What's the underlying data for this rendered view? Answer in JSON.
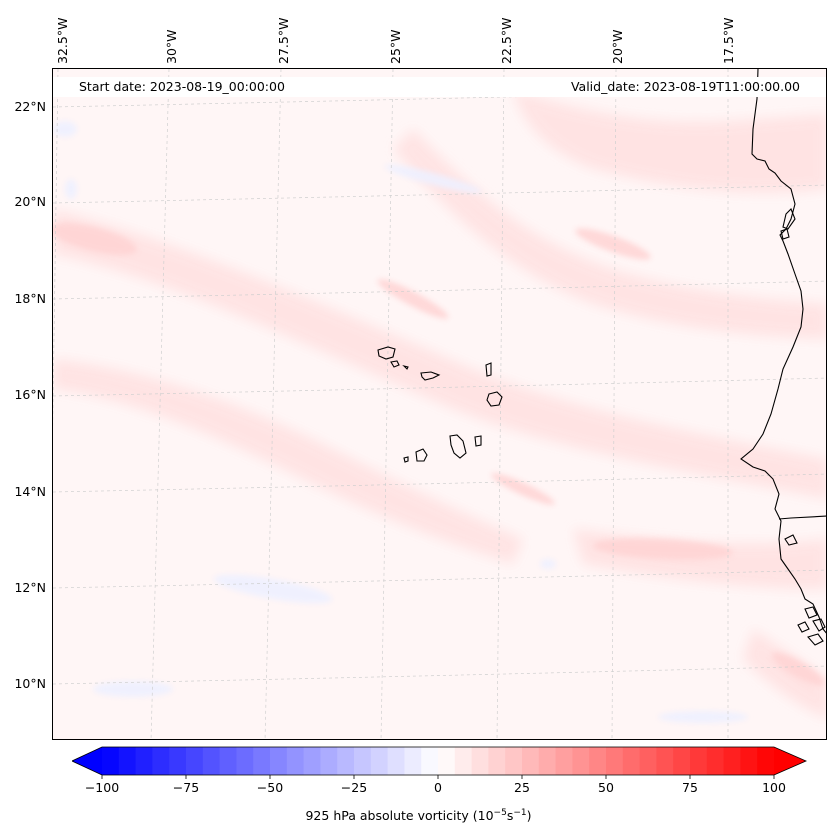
{
  "map": {
    "start_date": "Start date: 2023-08-19_00:00:00",
    "valid_date": "Valid_date: 2023-08-19T11:00:00.00",
    "lon_labels": [
      "32.5°W",
      "30°W",
      "27.5°W",
      "25°W",
      "22.5°W",
      "20°W",
      "17.5°W"
    ],
    "lat_labels": [
      "22°N",
      "20°N",
      "18°N",
      "16°N",
      "14°N",
      "12°N",
      "10°N"
    ],
    "lon_values": [
      -32.5,
      -30,
      -27.5,
      -25,
      -22.5,
      -20,
      -17.5
    ],
    "lat_values": [
      22,
      20,
      18,
      16,
      14,
      12,
      10
    ],
    "projection": "lambert-conformal",
    "gridlines": "dashed light grey",
    "coastlines": "black"
  },
  "colorbar": {
    "label_prefix": "925 hPa absolute vorticity (10",
    "label_exp1": "−5",
    "label_mid": "s",
    "label_exp2": "−1",
    "label_suffix": ")",
    "ticks": [
      "−100",
      "−75",
      "−50",
      "−25",
      "0",
      "25",
      "50",
      "75",
      "100"
    ],
    "tick_values": [
      -100,
      -75,
      -50,
      -25,
      0,
      25,
      50,
      75,
      100
    ],
    "range": [
      -100,
      100
    ],
    "colormap": "bwr",
    "extend": "both",
    "step": 5
  }
}
